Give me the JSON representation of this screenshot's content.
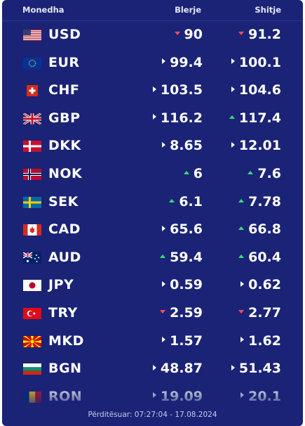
{
  "header": {
    "currency": "Monedha",
    "buy": "Blerje",
    "sell": "Shitje"
  },
  "rates": [
    {
      "code": "USD",
      "flag": "us-flag",
      "buy": "90",
      "buy_trend": "down",
      "sell": "91.2",
      "sell_trend": "down"
    },
    {
      "code": "EUR",
      "flag": "eu-flag",
      "buy": "99.4",
      "buy_trend": "neutral",
      "sell": "100.1",
      "sell_trend": "neutral"
    },
    {
      "code": "CHF",
      "flag": "ch-flag",
      "buy": "103.5",
      "buy_trend": "neutral",
      "sell": "104.6",
      "sell_trend": "neutral"
    },
    {
      "code": "GBP",
      "flag": "gb-flag",
      "buy": "116.2",
      "buy_trend": "neutral",
      "sell": "117.4",
      "sell_trend": "up"
    },
    {
      "code": "DKK",
      "flag": "dk-flag",
      "buy": "8.65",
      "buy_trend": "neutral",
      "sell": "12.01",
      "sell_trend": "neutral"
    },
    {
      "code": "NOK",
      "flag": "no-flag",
      "buy": "6",
      "buy_trend": "up",
      "sell": "7.6",
      "sell_trend": "up"
    },
    {
      "code": "SEK",
      "flag": "se-flag",
      "buy": "6.1",
      "buy_trend": "up",
      "sell": "7.78",
      "sell_trend": "up"
    },
    {
      "code": "CAD",
      "flag": "ca-flag",
      "buy": "65.6",
      "buy_trend": "neutral",
      "sell": "66.8",
      "sell_trend": "up"
    },
    {
      "code": "AUD",
      "flag": "au-flag",
      "buy": "59.4",
      "buy_trend": "up",
      "sell": "60.4",
      "sell_trend": "up"
    },
    {
      "code": "JPY",
      "flag": "jp-flag",
      "buy": "0.59",
      "buy_trend": "neutral",
      "sell": "0.62",
      "sell_trend": "neutral"
    },
    {
      "code": "TRY",
      "flag": "tr-flag",
      "buy": "2.59",
      "buy_trend": "down",
      "sell": "2.77",
      "sell_trend": "down"
    },
    {
      "code": "MKD",
      "flag": "mk-flag",
      "buy": "1.57",
      "buy_trend": "neutral",
      "sell": "1.62",
      "sell_trend": "neutral"
    },
    {
      "code": "BGN",
      "flag": "bg-flag",
      "buy": "48.87",
      "buy_trend": "neutral",
      "sell": "51.43",
      "sell_trend": "neutral"
    },
    {
      "code": "RON",
      "flag": "ro-flag",
      "buy": "19.09",
      "buy_trend": "neutral",
      "sell": "20.1",
      "sell_trend": "neutral"
    }
  ],
  "footer": {
    "updated": "Përditësuar: 07:27:04 - 17.08.2024"
  },
  "colors": {
    "panel": "#1a2376",
    "up": "#37e072",
    "down": "#ff4a5a",
    "neutral": "#ffffff"
  }
}
